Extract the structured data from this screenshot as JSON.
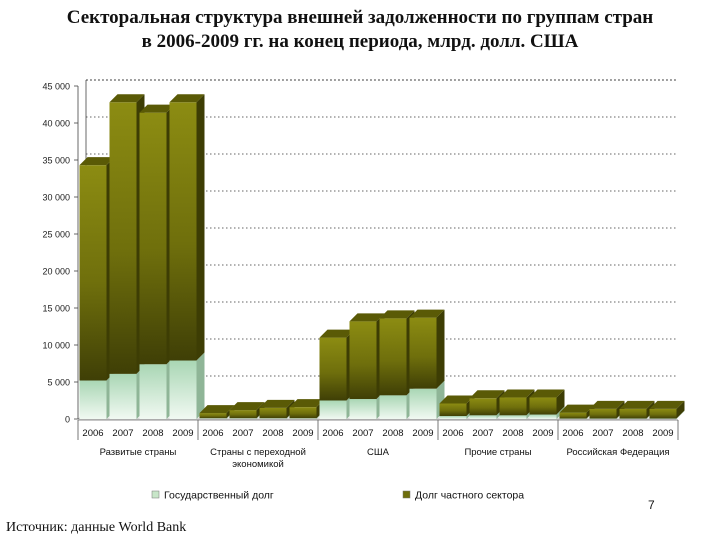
{
  "title_line1": "Секторальная структура внешней задолженности по группам стран",
  "title_line2": "в 2006-2009 гг. на конец периода, млрд. долл. США",
  "page_number": "7",
  "source": "Источник: данные World Bank",
  "chart_data": {
    "type": "bar",
    "stacked": true,
    "title": "Секторальная структура внешней задолженности по группам стран в 2006-2009 гг. на конец периода, млрд. долл. США",
    "ylim": [
      0,
      45000
    ],
    "yticks": [
      0,
      5000,
      10000,
      15000,
      20000,
      25000,
      30000,
      35000,
      40000,
      45000
    ],
    "ytick_labels": [
      "0",
      "5 000",
      "10 000",
      "15 000",
      "20 000",
      "25 000",
      "30 000",
      "35 000",
      "40 000",
      "45 000"
    ],
    "grid": true,
    "legend_position": "bottom",
    "groups": [
      {
        "name": "Развитые страны",
        "years": [
          "2006",
          "2007",
          "2008",
          "2009"
        ]
      },
      {
        "name": "Страны с переходной экономикой",
        "years": [
          "2006",
          "2007",
          "2008",
          "2009"
        ]
      },
      {
        "name": "США",
        "years": [
          "2006",
          "2007",
          "2008",
          "2009"
        ]
      },
      {
        "name": "Прочие страны",
        "years": [
          "2006",
          "2007",
          "2008",
          "2009"
        ]
      },
      {
        "name": "Российская Федерация",
        "years": [
          "2006",
          "2007",
          "2008",
          "2009"
        ]
      }
    ],
    "series": [
      {
        "name": "Государственный долг",
        "color": "#c8e6c9",
        "values": [
          5200,
          6100,
          7400,
          7900,
          100,
          100,
          100,
          100,
          2500,
          2700,
          3200,
          4100,
          400,
          500,
          500,
          600,
          60,
          60,
          60,
          60
        ]
      },
      {
        "name": "Долг частного сектора",
        "color": "#7a7a10",
        "values": [
          29100,
          36700,
          34000,
          34900,
          700,
          1100,
          1400,
          1500,
          8500,
          10500,
          10400,
          9600,
          1700,
          2300,
          2400,
          2300,
          800,
          1300,
          1300,
          1300
        ]
      }
    ]
  }
}
